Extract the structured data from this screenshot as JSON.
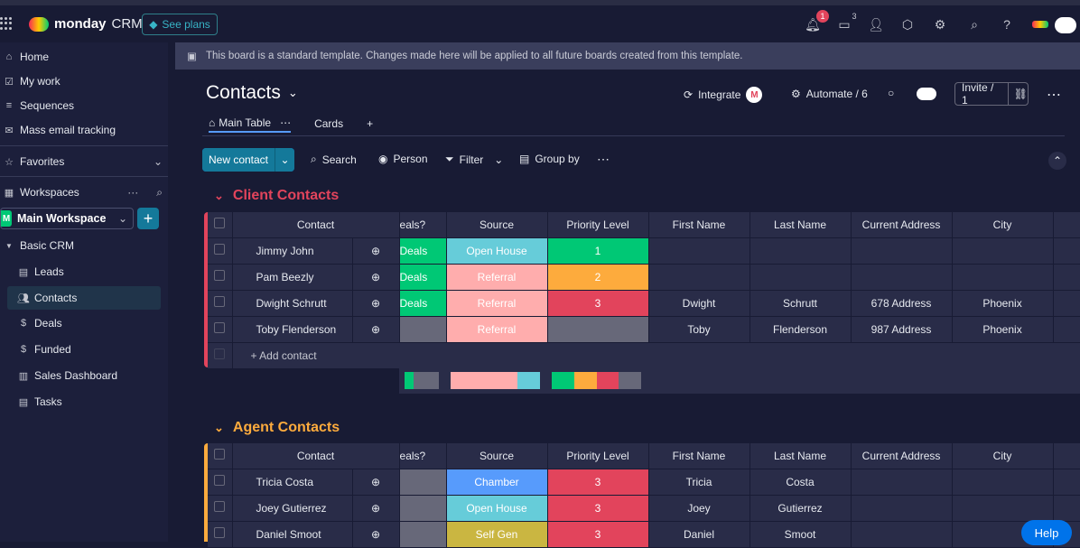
{
  "app": {
    "name": "monday",
    "suffix": "CRM",
    "see_plans": "See plans"
  },
  "topbar": {
    "notifications_count": "1",
    "inbox_count": "3",
    "help_icon": "?"
  },
  "sidebar": {
    "items": [
      {
        "label": "Home",
        "icon": "home-icon"
      },
      {
        "label": "My work",
        "icon": "mywork-icon"
      },
      {
        "label": "Sequences",
        "icon": "sequences-icon"
      },
      {
        "label": "Mass email tracking",
        "icon": "email-icon"
      }
    ],
    "favorites": "Favorites",
    "workspaces": "Workspaces",
    "workspace_name": "Main Workspace",
    "workspace_initial": "M",
    "folder": "Basic CRM",
    "boards": [
      "Leads",
      "Contacts",
      "Deals",
      "Funded",
      "Sales Dashboard",
      "Tasks"
    ]
  },
  "banner": {
    "text": "This board is a standard template. Changes made here will be applied to all future boards created from this template."
  },
  "board": {
    "title": "Contacts",
    "integrate": "Integrate",
    "automate": "Automate / 6",
    "invite": "Invite / 1",
    "tabs": [
      "Main Table",
      "Cards",
      "+"
    ],
    "toolbar": {
      "new_contact": "New contact",
      "search": "Search",
      "person": "Person",
      "filter": "Filter",
      "group_by": "Group by"
    }
  },
  "columns": [
    "Contact",
    "eals?",
    "Source",
    "Priority Level",
    "First Name",
    "Last Name",
    "Current Address",
    "City"
  ],
  "groups": [
    {
      "title": "Client Contacts",
      "color": "#e2445c",
      "rows": [
        {
          "contact": "Jimmy John",
          "deals": "Deals",
          "source": "Open House",
          "priority": "1",
          "first": "",
          "last": "",
          "address": "",
          "city": ""
        },
        {
          "contact": "Pam Beezly",
          "deals": "Deals",
          "source": "Referral",
          "priority": "2",
          "first": "",
          "last": "",
          "address": "",
          "city": ""
        },
        {
          "contact": "Dwight Schrutt",
          "deals": "Deals",
          "source": "Referral",
          "priority": "3",
          "first": "Dwight",
          "last": "Schrutt",
          "address": "678 Address",
          "city": "Phoenix"
        },
        {
          "contact": "Toby Flenderson",
          "deals": "",
          "source": "Referral",
          "priority": "",
          "first": "Toby",
          "last": "Flenderson",
          "address": "987 Address",
          "city": "Phoenix"
        }
      ],
      "add_label": "+ Add contact"
    },
    {
      "title": "Agent Contacts",
      "color": "#fdab3d",
      "rows": [
        {
          "contact": "Tricia Costa",
          "deals": "",
          "source": "Chamber",
          "priority": "3",
          "first": "Tricia",
          "last": "Costa",
          "address": "",
          "city": ""
        },
        {
          "contact": "Joey Gutierrez",
          "deals": "",
          "source": "Open House",
          "priority": "3",
          "first": "Joey",
          "last": "Gutierrez",
          "address": "",
          "city": ""
        },
        {
          "contact": "Daniel Smoot",
          "deals": "",
          "source": "Self Gen",
          "priority": "3",
          "first": "Daniel",
          "last": "Smoot",
          "address": "",
          "city": ""
        }
      ]
    }
  ],
  "help": "Help"
}
